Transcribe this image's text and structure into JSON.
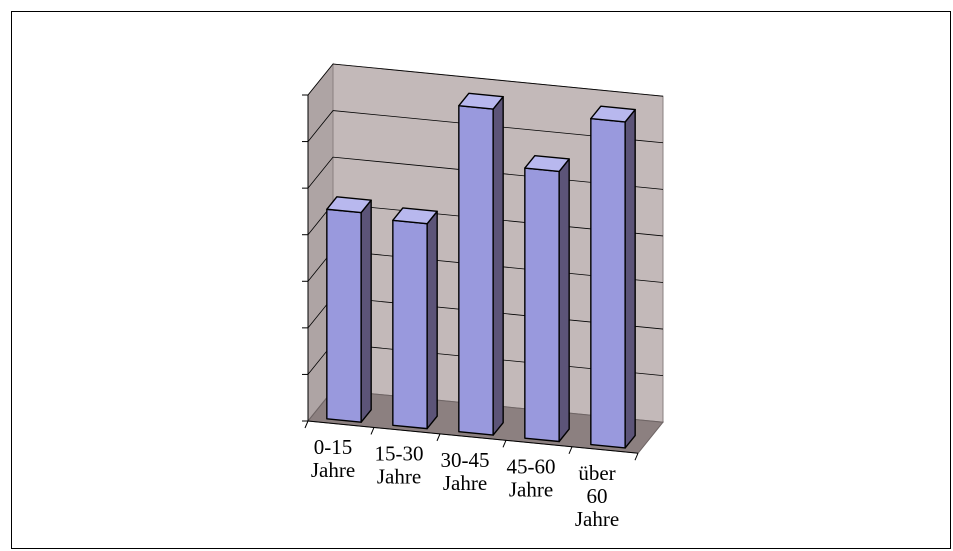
{
  "chart_data": {
    "type": "bar",
    "title": "",
    "xlabel": "",
    "ylabel": "",
    "categories": [
      [
        "0-15",
        "Jahre"
      ],
      [
        "15-30",
        "Jahre"
      ],
      [
        "30-45",
        "Jahre"
      ],
      [
        "45-60",
        "Jahre"
      ],
      [
        "über",
        "60",
        "Jahre"
      ]
    ],
    "values": [
      4.5,
      4.4,
      7.0,
      5.8,
      7.0
    ],
    "ylim": [
      0,
      7
    ],
    "y_tick_labels_shown": false,
    "grid": true,
    "three_d": true,
    "colors": {
      "bar_front": "#9999dd",
      "bar_side": "#5c5478",
      "bar_top": "#b8b8ee",
      "back_wall": "#c3b9b9",
      "side_wall": "#aea4a4",
      "floor": "#8c8080",
      "gridline": "#000000"
    }
  }
}
